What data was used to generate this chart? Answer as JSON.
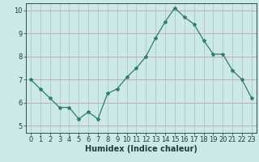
{
  "x": [
    0,
    1,
    2,
    3,
    4,
    5,
    6,
    7,
    8,
    9,
    10,
    11,
    12,
    13,
    14,
    15,
    16,
    17,
    18,
    19,
    20,
    21,
    22,
    23
  ],
  "y": [
    7.0,
    6.6,
    6.2,
    5.8,
    5.8,
    5.3,
    5.6,
    5.3,
    6.4,
    6.6,
    7.1,
    7.5,
    8.0,
    8.8,
    9.5,
    10.1,
    9.7,
    9.4,
    8.7,
    8.1,
    8.1,
    7.4,
    7.0,
    6.2
  ],
  "line_color": "#2e7d6e",
  "marker": "*",
  "marker_size": 3,
  "bg_color": "#cde8e8",
  "grid_color_h": "#c8a0a0",
  "grid_color_v": "#a8c8c8",
  "axis_color": "#2e5050",
  "xlabel": "Humidex (Indice chaleur)",
  "xlim": [
    -0.5,
    23.5
  ],
  "ylim": [
    4.7,
    10.3
  ],
  "yticks": [
    5,
    6,
    7,
    8,
    9,
    10
  ],
  "xticks": [
    0,
    1,
    2,
    3,
    4,
    5,
    6,
    7,
    8,
    9,
    10,
    11,
    12,
    13,
    14,
    15,
    16,
    17,
    18,
    19,
    20,
    21,
    22,
    23
  ],
  "xlabel_fontsize": 7,
  "tick_fontsize": 6,
  "tick_color": "#1a4040"
}
